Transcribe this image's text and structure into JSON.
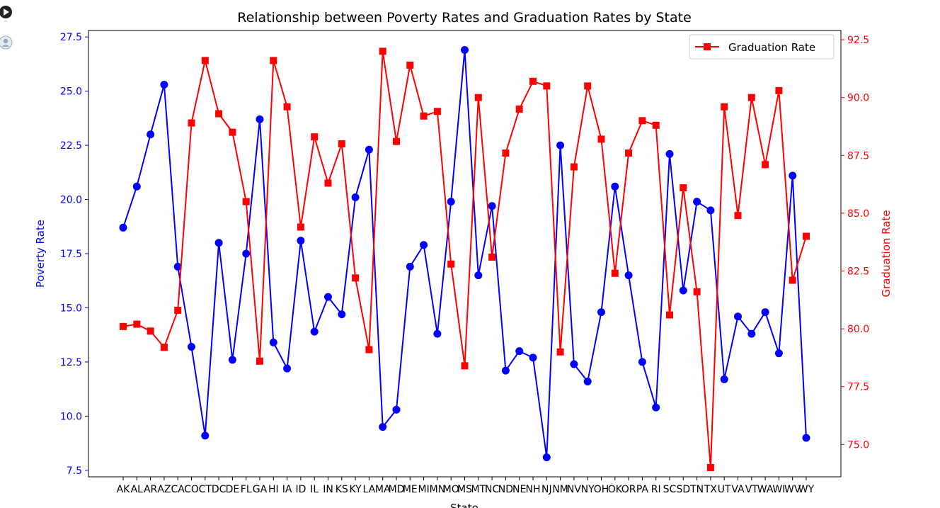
{
  "colors": {
    "left_axis": "#0000ff",
    "right_axis": "#ff0000",
    "frame": "#000000",
    "title": "#000000",
    "legend_text": "#000000",
    "tick_label": "#000000"
  },
  "gutter": {
    "run_icon": "play-circle-icon",
    "user_icon": "user-avatar-icon"
  },
  "chart_data": {
    "type": "line",
    "title": "Relationship between Poverty Rates and Graduation Rates by State",
    "xlabel": "State",
    "ylabel_left": "Poverty Rate",
    "ylabel_right": "Graduation Rate",
    "grid": false,
    "legend_position": "top-right",
    "categories": [
      "AK",
      "AL",
      "AR",
      "AZ",
      "CA",
      "CO",
      "CT",
      "DC",
      "DE",
      "FL",
      "GA",
      "HI",
      "IA",
      "ID",
      "IL",
      "IN",
      "KS",
      "KY",
      "LA",
      "MA",
      "MD",
      "ME",
      "MI",
      "MN",
      "MO",
      "MS",
      "MT",
      "NC",
      "ND",
      "NE",
      "NH",
      "NJ",
      "NM",
      "NV",
      "NY",
      "OH",
      "OK",
      "OR",
      "PA",
      "RI",
      "SC",
      "SD",
      "TN",
      "TX",
      "UT",
      "VA",
      "VT",
      "WA",
      "WI",
      "WV",
      "WY"
    ],
    "left_axis": {
      "ylim": [
        7.2,
        27.8
      ],
      "ticks": [
        "7.5",
        "10.0",
        "12.5",
        "15.0",
        "17.5",
        "20.0",
        "22.5",
        "25.0",
        "27.5"
      ]
    },
    "right_axis": {
      "ylim": [
        73.6,
        92.9
      ],
      "ticks": [
        "75.0",
        "77.5",
        "80.0",
        "82.5",
        "85.0",
        "87.5",
        "90.0",
        "92.5"
      ]
    },
    "series": [
      {
        "axis": "left",
        "marker": "circle",
        "color": "#0000ff",
        "values": [
          18.7,
          20.6,
          23.0,
          25.3,
          16.9,
          13.2,
          9.1,
          18.0,
          12.6,
          17.5,
          23.7,
          13.4,
          12.2,
          18.1,
          13.9,
          15.5,
          14.7,
          20.1,
          22.3,
          9.5,
          10.3,
          16.9,
          17.9,
          13.8,
          19.9,
          26.9,
          16.5,
          19.7,
          12.1,
          13.0,
          12.7,
          8.1,
          22.5,
          12.4,
          11.6,
          14.8,
          20.6,
          16.5,
          12.5,
          10.4,
          22.1,
          15.8,
          19.9,
          19.5,
          11.7,
          14.6,
          13.8,
          14.8,
          12.9,
          21.1,
          9.0
        ]
      },
      {
        "name": "Graduation Rate",
        "axis": "right",
        "marker": "square",
        "color": "#ff0000",
        "values": [
          80.1,
          80.2,
          79.9,
          79.2,
          80.8,
          88.9,
          91.6,
          89.3,
          88.5,
          85.5,
          78.6,
          91.6,
          89.6,
          84.4,
          88.3,
          86.3,
          88.0,
          82.2,
          79.1,
          92.0,
          88.1,
          91.4,
          89.2,
          89.4,
          82.8,
          78.4,
          90.0,
          83.1,
          87.6,
          89.5,
          90.7,
          90.5,
          79.0,
          87.0,
          90.5,
          88.2,
          82.4,
          87.6,
          89.0,
          88.8,
          80.6,
          86.1,
          81.6,
          74.0,
          89.6,
          84.9,
          90.0,
          87.1,
          90.3,
          82.1,
          84.0
        ]
      }
    ]
  }
}
